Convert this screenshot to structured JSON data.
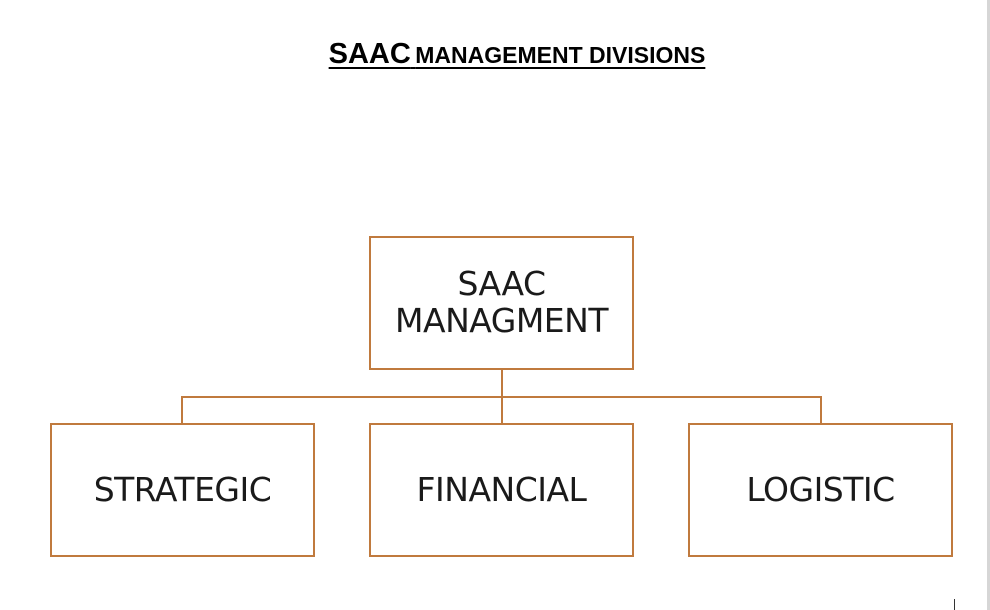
{
  "title": {
    "part1": "SAAC",
    "part2": "MANAGEMENT DIVISIONS"
  },
  "root": {
    "line1": "SAAC",
    "line2": "MANAGMENT"
  },
  "children": [
    {
      "label": "STRATEGIC"
    },
    {
      "label": "FINANCIAL"
    },
    {
      "label": "LOGISTIC"
    }
  ],
  "colors": {
    "box_border": "#c07a3e",
    "connector": "#c07a3e",
    "text": "#1a1a1a"
  }
}
